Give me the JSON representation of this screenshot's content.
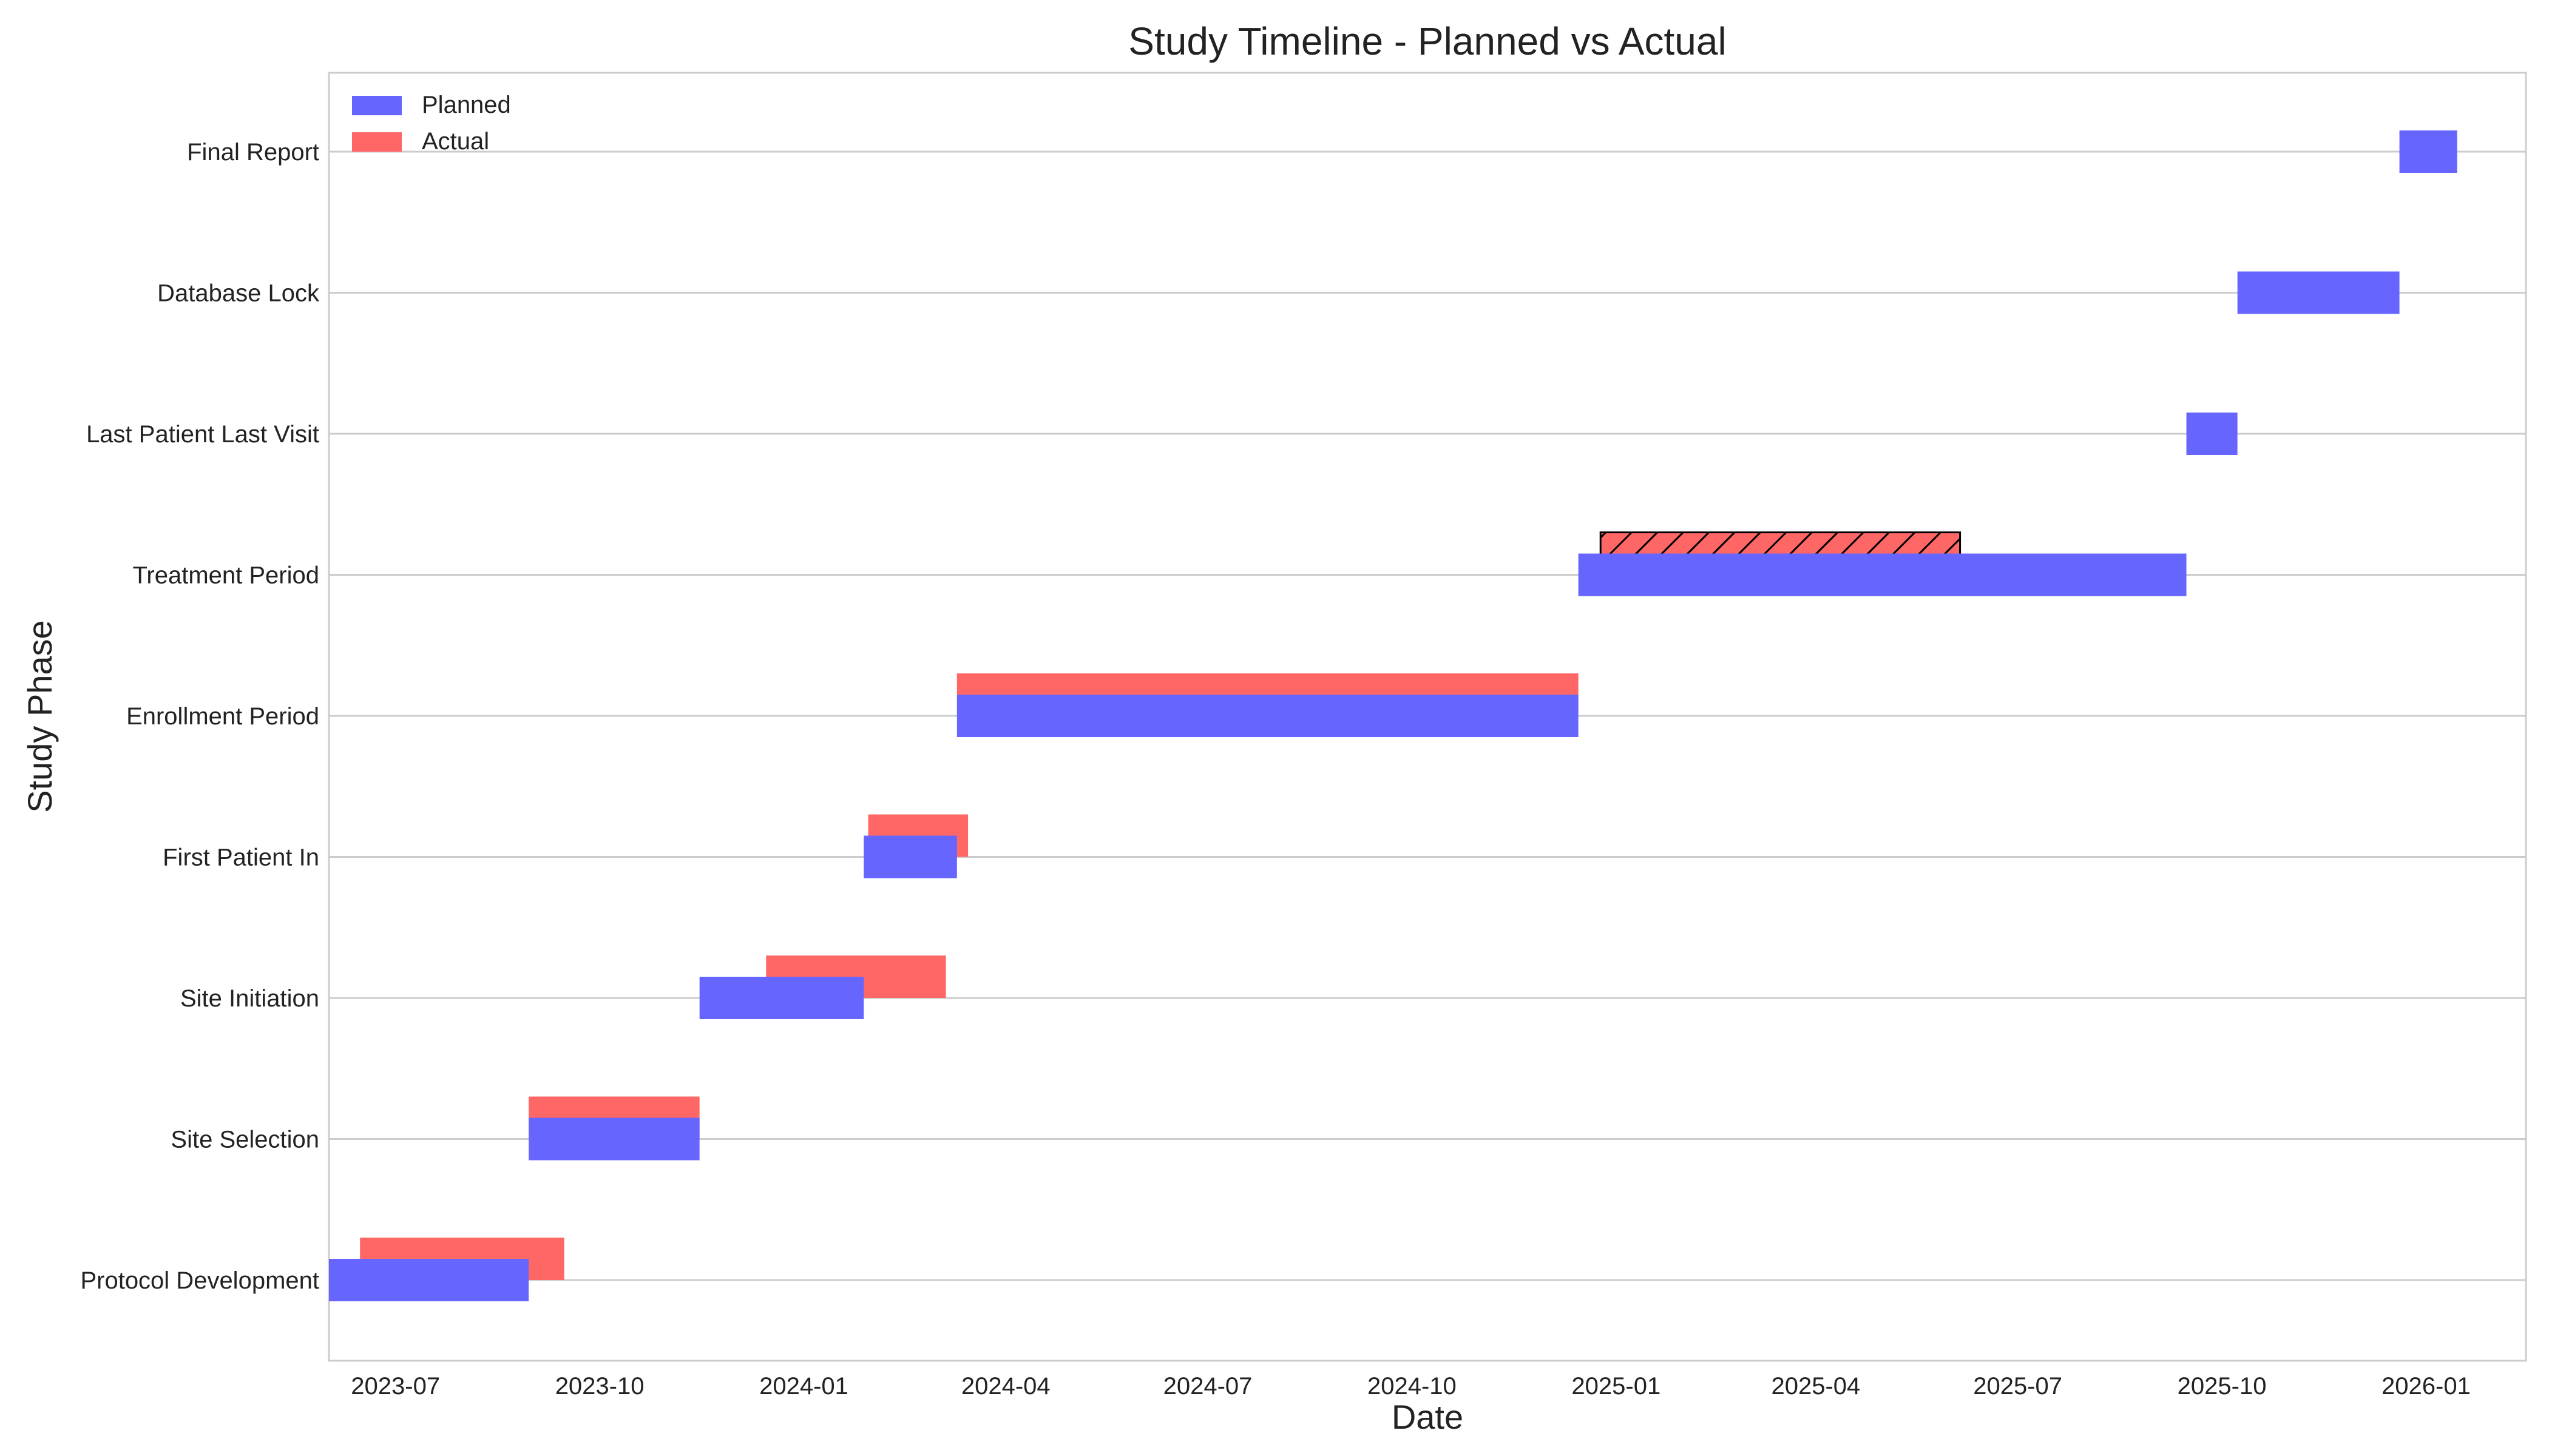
{
  "chart_data": {
    "type": "gantt",
    "title": "Study Timeline - Planned vs Actual",
    "xlabel": "Date",
    "ylabel": "Study Phase",
    "x_range": [
      "2023-06-01",
      "2026-02-15"
    ],
    "x_ticks": [
      "2023-07",
      "2023-10",
      "2024-01",
      "2024-04",
      "2024-07",
      "2024-10",
      "2025-01",
      "2025-04",
      "2025-07",
      "2025-10",
      "2026-01"
    ],
    "grid": "horizontal",
    "legend_position": "top-left",
    "colors": {
      "planned": "#6666ff",
      "actual": "#ff6666",
      "background": "#ffffff",
      "grid": "#cccccc",
      "spine": "#cccccc"
    },
    "legend": [
      {
        "key": "planned",
        "label": "Planned"
      },
      {
        "key": "actual",
        "label": "Actual"
      }
    ],
    "phases": [
      {
        "name": "Protocol Development",
        "planned": [
          "2023-06-01",
          "2023-08-30"
        ],
        "actual": [
          "2023-06-15",
          "2023-09-15"
        ],
        "actual_status": "complete"
      },
      {
        "name": "Site Selection",
        "planned": [
          "2023-08-30",
          "2023-11-15"
        ],
        "actual": [
          "2023-08-30",
          "2023-11-15"
        ],
        "actual_status": "complete"
      },
      {
        "name": "Site Initiation",
        "planned": [
          "2023-11-15",
          "2024-01-28"
        ],
        "actual": [
          "2023-12-15",
          "2024-03-05"
        ],
        "actual_status": "complete"
      },
      {
        "name": "First Patient In",
        "planned": [
          "2024-01-28",
          "2024-03-10"
        ],
        "actual": [
          "2024-01-30",
          "2024-03-15"
        ],
        "actual_status": "complete"
      },
      {
        "name": "Enrollment Period",
        "planned": [
          "2024-03-10",
          "2024-12-15"
        ],
        "actual": [
          "2024-03-10",
          "2024-12-15"
        ],
        "actual_status": "complete"
      },
      {
        "name": "Treatment Period",
        "planned": [
          "2024-12-15",
          "2025-09-15"
        ],
        "actual": [
          "2024-12-25",
          "2025-06-05"
        ],
        "actual_status": "in-progress"
      },
      {
        "name": "Last Patient Last Visit",
        "planned": [
          "2025-09-15",
          "2025-10-08"
        ],
        "actual": null,
        "actual_status": "none"
      },
      {
        "name": "Database Lock",
        "planned": [
          "2025-10-08",
          "2025-12-20"
        ],
        "actual": null,
        "actual_status": "none"
      },
      {
        "name": "Final Report",
        "planned": [
          "2025-12-20",
          "2026-01-15"
        ],
        "actual": null,
        "actual_status": "none"
      }
    ]
  }
}
